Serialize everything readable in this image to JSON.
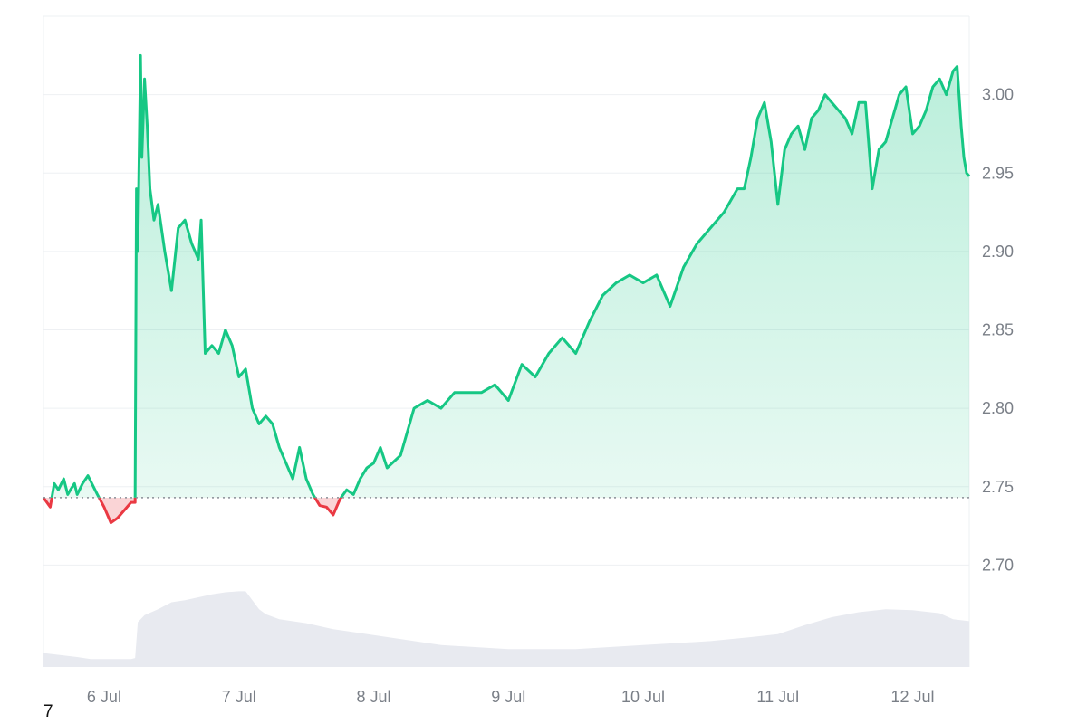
{
  "chart_data": {
    "type": "area",
    "title": "",
    "xlabel": "",
    "ylabel": "",
    "x_ticks": [
      "6 Jul",
      "7 Jul",
      "8 Jul",
      "9 Jul",
      "10 Jul",
      "11 Jul",
      "12 Jul"
    ],
    "y_ticks": [
      2.7,
      2.75,
      2.8,
      2.85,
      2.9,
      2.95,
      3.0
    ],
    "y_tick_labels": [
      "2.70",
      "2.75",
      "2.80",
      "2.85",
      "2.90",
      "2.95",
      "3.00"
    ],
    "ylim": [
      2.635,
      3.05
    ],
    "xlim_days": [
      5.55,
      12.42
    ],
    "baseline": 2.743,
    "colors": {
      "up_line": "#16c784",
      "down_line": "#ea3943",
      "up_fill_top": "#16c784",
      "down_fill": "#ea3943",
      "volume": "#e8eaf0",
      "grid": "#eef0f3",
      "baseline": "#8a8f98"
    },
    "price": {
      "x": [
        5.55,
        5.6,
        5.63,
        5.66,
        5.7,
        5.73,
        5.75,
        5.78,
        5.8,
        5.84,
        5.88,
        5.95,
        6.0,
        6.05,
        6.1,
        6.15,
        6.2,
        6.23,
        6.24,
        6.25,
        6.27,
        6.28,
        6.3,
        6.32,
        6.34,
        6.37,
        6.4,
        6.45,
        6.5,
        6.55,
        6.6,
        6.65,
        6.7,
        6.72,
        6.75,
        6.8,
        6.85,
        6.9,
        6.95,
        7.0,
        7.05,
        7.1,
        7.15,
        7.2,
        7.25,
        7.3,
        7.35,
        7.4,
        7.45,
        7.5,
        7.55,
        7.6,
        7.65,
        7.7,
        7.75,
        7.8,
        7.85,
        7.9,
        7.95,
        8.0,
        8.05,
        8.1,
        8.2,
        8.3,
        8.4,
        8.5,
        8.6,
        8.7,
        8.8,
        8.9,
        9.0,
        9.1,
        9.2,
        9.3,
        9.4,
        9.5,
        9.6,
        9.7,
        9.8,
        9.9,
        10.0,
        10.1,
        10.2,
        10.3,
        10.4,
        10.5,
        10.6,
        10.7,
        10.75,
        10.8,
        10.85,
        10.9,
        10.95,
        11.0,
        11.05,
        11.1,
        11.15,
        11.2,
        11.25,
        11.3,
        11.35,
        11.4,
        11.45,
        11.5,
        11.55,
        11.6,
        11.65,
        11.7,
        11.75,
        11.8,
        11.85,
        11.9,
        11.95,
        12.0,
        12.05,
        12.1,
        12.15,
        12.2,
        12.25,
        12.3,
        12.33,
        12.36,
        12.38,
        12.4,
        12.42
      ],
      "y": [
        2.743,
        2.737,
        2.752,
        2.748,
        2.755,
        2.745,
        2.748,
        2.752,
        2.745,
        2.752,
        2.757,
        2.745,
        2.737,
        2.727,
        2.73,
        2.735,
        2.74,
        2.74,
        2.94,
        2.9,
        3.025,
        2.96,
        3.01,
        2.98,
        2.94,
        2.92,
        2.93,
        2.9,
        2.875,
        2.915,
        2.92,
        2.905,
        2.895,
        2.92,
        2.835,
        2.84,
        2.835,
        2.85,
        2.84,
        2.82,
        2.825,
        2.8,
        2.79,
        2.795,
        2.79,
        2.775,
        2.765,
        2.755,
        2.775,
        2.755,
        2.745,
        2.738,
        2.737,
        2.732,
        2.742,
        2.748,
        2.745,
        2.755,
        2.762,
        2.765,
        2.775,
        2.762,
        2.77,
        2.8,
        2.805,
        2.8,
        2.81,
        2.81,
        2.81,
        2.815,
        2.805,
        2.828,
        2.82,
        2.835,
        2.845,
        2.835,
        2.855,
        2.872,
        2.88,
        2.885,
        2.88,
        2.885,
        2.865,
        2.89,
        2.905,
        2.915,
        2.925,
        2.94,
        2.94,
        2.96,
        2.985,
        2.995,
        2.97,
        2.93,
        2.965,
        2.975,
        2.98,
        2.965,
        2.985,
        2.99,
        3.0,
        2.995,
        2.99,
        2.985,
        2.975,
        2.995,
        2.995,
        2.94,
        2.965,
        2.97,
        2.985,
        3.0,
        3.005,
        2.975,
        2.98,
        2.99,
        3.005,
        3.01,
        3.0,
        3.015,
        3.018,
        2.98,
        2.96,
        2.95,
        2.948
      ]
    },
    "volume_level": {
      "x": [
        5.55,
        5.8,
        5.9,
        6.0,
        6.1,
        6.2,
        6.23,
        6.25,
        6.3,
        6.4,
        6.5,
        6.6,
        6.7,
        6.8,
        6.9,
        7.0,
        7.05,
        7.1,
        7.15,
        7.2,
        7.3,
        7.5,
        7.7,
        8.0,
        8.5,
        9.0,
        9.5,
        10.0,
        10.5,
        10.8,
        11.0,
        11.2,
        11.4,
        11.6,
        11.8,
        12.0,
        12.2,
        12.3,
        12.42
      ],
      "y": [
        0.14,
        0.1,
        0.08,
        0.08,
        0.08,
        0.08,
        0.09,
        0.45,
        0.52,
        0.58,
        0.65,
        0.67,
        0.7,
        0.73,
        0.75,
        0.76,
        0.76,
        0.67,
        0.58,
        0.53,
        0.48,
        0.44,
        0.38,
        0.32,
        0.22,
        0.18,
        0.18,
        0.22,
        0.26,
        0.3,
        0.33,
        0.42,
        0.5,
        0.55,
        0.58,
        0.57,
        0.54,
        0.48,
        0.46
      ]
    }
  },
  "footer": {
    "corner_label": "7"
  }
}
